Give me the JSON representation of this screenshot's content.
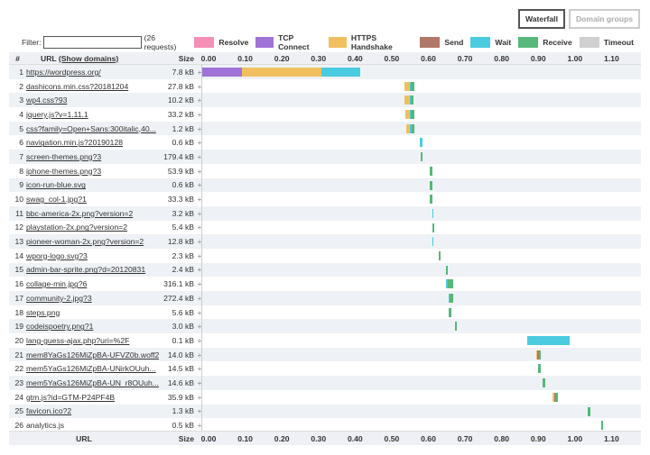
{
  "views": {
    "waterfall": "Waterfall",
    "domain_groups": "Domain groups"
  },
  "filter": {
    "label": "Filter:",
    "value": "",
    "count": "(26 requests)"
  },
  "legend": [
    {
      "name": "Resolve",
      "color": "#f58fb8"
    },
    {
      "name": "TCP Connect",
      "color": "#9f72d6"
    },
    {
      "name": "HTTPS Handshake",
      "color": "#f0c060"
    },
    {
      "name": "Send",
      "color": "#b07868"
    },
    {
      "name": "Wait",
      "color": "#4bcbe0"
    },
    {
      "name": "Receive",
      "color": "#56b87a"
    },
    {
      "name": "Timeout",
      "color": "#d0d0d0"
    }
  ],
  "header": {
    "num": "#",
    "url": "URL",
    "show_domains": "(Show domains)",
    "size": "Size",
    "url_bottom": "URL"
  },
  "ticks": [
    "0.00",
    "0.10",
    "0.20",
    "0.30",
    "0.40",
    "0.50",
    "0.60",
    "0.70",
    "0.80",
    "0.90",
    "1.00",
    "1.10"
  ],
  "requests": [
    {
      "num": "1",
      "url": "https://wordpress.org/",
      "size": "7.8 kB",
      "segs": [
        {
          "s": 0.0,
          "e": 0.108,
          "c": "#9f72d6"
        },
        {
          "s": 0.108,
          "e": 0.325,
          "c": "#f0c060"
        },
        {
          "s": 0.325,
          "e": 0.432,
          "c": "#4bcbe0"
        }
      ]
    },
    {
      "num": "2",
      "url": "dashicons.min.css?20181204",
      "size": "27.8 kB",
      "segs": [
        {
          "s": 0.553,
          "e": 0.566,
          "c": "#f0c060"
        },
        {
          "s": 0.566,
          "e": 0.57,
          "c": "#4bcbe0"
        },
        {
          "s": 0.57,
          "e": 0.578,
          "c": "#56b87a"
        }
      ]
    },
    {
      "num": "3",
      "url": "wp4.css?93",
      "size": "10.2 kB",
      "segs": [
        {
          "s": 0.553,
          "e": 0.566,
          "c": "#f0c060"
        },
        {
          "s": 0.566,
          "e": 0.57,
          "c": "#4bcbe0"
        },
        {
          "s": 0.57,
          "e": 0.577,
          "c": "#56b87a"
        }
      ]
    },
    {
      "num": "4",
      "url": "jquery.js?v=1.11.1",
      "size": "33.2 kB",
      "segs": [
        {
          "s": 0.555,
          "e": 0.566,
          "c": "#f0c060"
        },
        {
          "s": 0.566,
          "e": 0.57,
          "c": "#4bcbe0"
        },
        {
          "s": 0.57,
          "e": 0.578,
          "c": "#56b87a"
        }
      ]
    },
    {
      "num": "5",
      "url": "css?family=Open+Sans:300italic,40...",
      "size": "1.2 kB",
      "segs": [
        {
          "s": 0.556,
          "e": 0.566,
          "c": "#f0c060"
        },
        {
          "s": 0.566,
          "e": 0.571,
          "c": "#4bcbe0"
        },
        {
          "s": 0.571,
          "e": 0.578,
          "c": "#56b87a"
        }
      ]
    },
    {
      "num": "6",
      "url": "navigation.min.js?20190128",
      "size": "0.6 kB",
      "segs": [
        {
          "s": 0.595,
          "e": 0.601,
          "c": "#4bcbe0"
        }
      ]
    },
    {
      "num": "7",
      "url": "screen-themes.png?3",
      "size": "179.4 kB",
      "segs": [
        {
          "s": 0.596,
          "e": 0.602,
          "c": "#56b87a"
        }
      ]
    },
    {
      "num": "8",
      "url": "iphone-themes.png?3",
      "size": "53.9 kB",
      "segs": [
        {
          "s": 0.622,
          "e": 0.628,
          "c": "#56b87a"
        }
      ]
    },
    {
      "num": "9",
      "url": "icon-run-blue.svg",
      "size": "0.6 kB",
      "segs": [
        {
          "s": 0.622,
          "e": 0.628,
          "c": "#56b87a"
        }
      ]
    },
    {
      "num": "10",
      "url": "swag_col-1.jpg?1",
      "size": "33.3 kB",
      "segs": [
        {
          "s": 0.622,
          "e": 0.628,
          "c": "#56b87a"
        }
      ]
    },
    {
      "num": "11",
      "url": "bbc-america-2x.png?version=2",
      "size": "3.2 kB",
      "segs": [
        {
          "s": 0.628,
          "e": 0.632,
          "c": "#4bcbe0"
        }
      ]
    },
    {
      "num": "12",
      "url": "playstation-2x.png?version=2",
      "size": "5.4 kB",
      "segs": [
        {
          "s": 0.628,
          "e": 0.634,
          "c": "#56b87a"
        }
      ]
    },
    {
      "num": "13",
      "url": "pioneer-woman-2x.png?version=2",
      "size": "12.8 kB",
      "segs": [
        {
          "s": 0.628,
          "e": 0.632,
          "c": "#4bcbe0"
        }
      ]
    },
    {
      "num": "14",
      "url": "wporg-logo.svg?3",
      "size": "2.3 kB",
      "segs": [
        {
          "s": 0.645,
          "e": 0.651,
          "c": "#56b87a"
        }
      ]
    },
    {
      "num": "15",
      "url": "admin-bar-sprite.png?d=20120831",
      "size": "2.4 kB",
      "segs": [
        {
          "s": 0.665,
          "e": 0.671,
          "c": "#56b87a"
        }
      ]
    },
    {
      "num": "16",
      "url": "collage-min.jpg?6",
      "size": "316.1 kB",
      "segs": [
        {
          "s": 0.666,
          "e": 0.67,
          "c": "#4bcbe0"
        },
        {
          "s": 0.67,
          "e": 0.685,
          "c": "#56b87a"
        }
      ]
    },
    {
      "num": "17",
      "url": "community-2.jpg?3",
      "size": "272.4 kB",
      "segs": [
        {
          "s": 0.672,
          "e": 0.676,
          "c": "#4bcbe0"
        },
        {
          "s": 0.676,
          "e": 0.684,
          "c": "#56b87a"
        }
      ]
    },
    {
      "num": "18",
      "url": "steps.png",
      "size": "5.6 kB",
      "segs": [
        {
          "s": 0.673,
          "e": 0.681,
          "c": "#56b87a"
        }
      ]
    },
    {
      "num": "19",
      "url": "codeispoetry.png?1",
      "size": "3.0 kB",
      "segs": [
        {
          "s": 0.689,
          "e": 0.694,
          "c": "#56b87a"
        }
      ]
    },
    {
      "num": "20",
      "url": "lang-guess-ajax.php?uri=%2F",
      "size": "0.1 kB",
      "segs": [
        {
          "s": 0.886,
          "e": 1.002,
          "c": "#4bcbe0"
        }
      ]
    },
    {
      "num": "21",
      "url": "mem8YaGs126MiZpBA-UFVZ0b.woff2",
      "size": "14.0 kB",
      "segs": [
        {
          "s": 0.911,
          "e": 0.914,
          "c": "#f0c060"
        },
        {
          "s": 0.914,
          "e": 0.918,
          "c": "#b07868"
        },
        {
          "s": 0.918,
          "e": 0.924,
          "c": "#56b87a"
        }
      ]
    },
    {
      "num": "22",
      "url": "mem5YaGs126MiZpBA-UNirkOUuh...",
      "size": "14.5 kB",
      "segs": [
        {
          "s": 0.917,
          "e": 0.924,
          "c": "#56b87a"
        }
      ]
    },
    {
      "num": "23",
      "url": "mem5YaGs126MiZpBA-UN_r8OUuh...",
      "size": "14.6 kB",
      "segs": [
        {
          "s": 0.93,
          "e": 0.936,
          "c": "#56b87a"
        }
      ]
    },
    {
      "num": "24",
      "url": "gtm.js?id=GTM-P24PF4B",
      "size": "35.9 kB",
      "segs": [
        {
          "s": 0.956,
          "e": 0.96,
          "c": "#f0c060"
        },
        {
          "s": 0.96,
          "e": 0.963,
          "c": "#b07868"
        },
        {
          "s": 0.963,
          "e": 0.972,
          "c": "#56b87a"
        }
      ]
    },
    {
      "num": "25",
      "url": "favicon.ico?2",
      "size": "1.3 kB",
      "segs": [
        {
          "s": 1.051,
          "e": 1.059,
          "c": "#56b87a"
        }
      ]
    },
    {
      "num": "26",
      "url": "analytics.js",
      "size": "0.5 kB",
      "segs": [
        {
          "s": 1.09,
          "e": 1.094,
          "c": "#56b87a"
        }
      ]
    }
  ]
}
